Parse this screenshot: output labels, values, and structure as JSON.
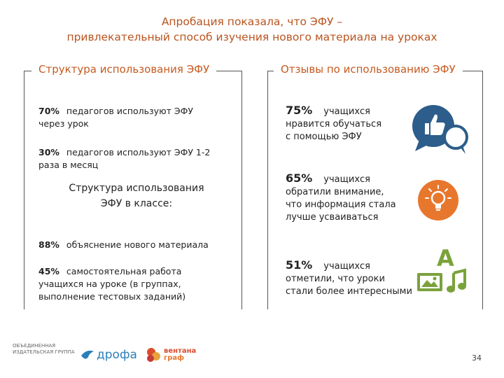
{
  "header": {
    "title_line1": "Апробация показала, что ЭФУ –",
    "title_line2": "привлекательный способ изучения нового материала на уроках"
  },
  "left": {
    "heading": "Структура использования ЭФУ",
    "stat1": {
      "pct": "70%",
      "line1": "педагогов используют ЭФУ",
      "line2": "через урок"
    },
    "stat2": {
      "pct": "30%",
      "line1": "педагогов используют ЭФУ 1-2",
      "line2": "раза в месяц"
    },
    "subheading_line1": "Структура использования",
    "subheading_line2": "ЭФУ в классе:",
    "stat3": {
      "pct": "88%",
      "line1": "объяснение нового материала"
    },
    "stat4": {
      "pct": "45%",
      "line1": "самостоятельная работа",
      "line2": "учащихся на уроке (в группах,",
      "line3": "выполнение тестовых заданий)"
    }
  },
  "right": {
    "heading": "Отзывы по использованию ЭФУ",
    "review1": {
      "pct": "75%",
      "who": "учащихся",
      "line1": "нравится обучаться",
      "line2": "с помощью ЭФУ",
      "icon": "chat-like-icon"
    },
    "review2": {
      "pct": "65%",
      "who": "учащихся",
      "line1": "обратили внимание,",
      "line2": "что информация стала",
      "line3": "лучше усваиваться",
      "icon": "lightbulb-icon"
    },
    "review3": {
      "pct": "51%",
      "who": "учащихся",
      "line1": "отметили, что уроки",
      "line2": "стали более интересными",
      "icon": "media-icon"
    }
  },
  "footer": {
    "group_line1": "ОБЪЕДИНЕННАЯ",
    "group_line2": "ИЗДАТЕЛЬСКАЯ ГРУППА",
    "drofa": "дрофа",
    "ventana_line1": "вентана",
    "ventana_line2": "граф",
    "page": "34"
  },
  "colors": {
    "accent": "#c65a1f",
    "icon_blue": "#2d5d8a",
    "icon_orange": "#e8772e",
    "icon_green": "#7aa23b"
  }
}
